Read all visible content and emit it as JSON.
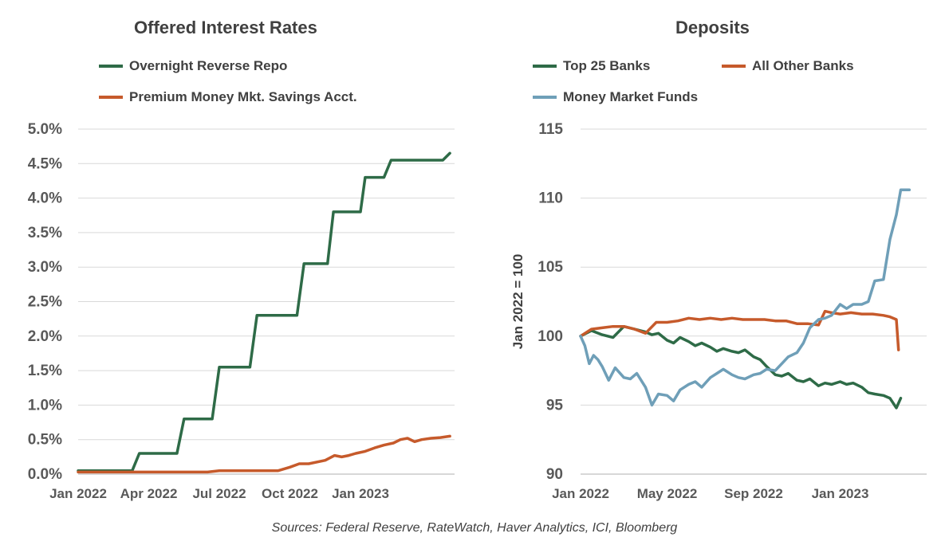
{
  "charts": {
    "rates": {
      "title": "Offered Interest Rates",
      "legend": [
        {
          "label": "Overnight Reverse Repo",
          "color": "#2e6b47"
        },
        {
          "label": "Premium Money Mkt. Savings Acct.",
          "color": "#c65a2b"
        }
      ]
    },
    "deposits": {
      "title": "Deposits",
      "ylabel": "Jan 2022 = 100",
      "legend": [
        {
          "label": "Top 25 Banks",
          "color": "#2e6b47"
        },
        {
          "label": "All Other Banks",
          "color": "#c65a2b"
        },
        {
          "label": "Money Market Funds",
          "color": "#6f9fb8"
        }
      ]
    }
  },
  "source": "Sources: Federal Reserve,  RateWatch, Haver Analytics, ICI, Bloomberg",
  "chart_data": [
    {
      "type": "line",
      "title": "Offered Interest Rates",
      "xlabel": "",
      "ylabel": "",
      "ylim": [
        0,
        5
      ],
      "xlim": [
        0,
        16
      ],
      "x_unit": "months since Jan 2022",
      "y_ticks": [
        "0.0%",
        "0.5%",
        "1.0%",
        "1.5%",
        "2.0%",
        "2.5%",
        "3.0%",
        "3.5%",
        "4.0%",
        "4.5%",
        "5.0%"
      ],
      "y_tick_values": [
        0,
        0.5,
        1,
        1.5,
        2,
        2.5,
        3,
        3.5,
        4,
        4.5,
        5
      ],
      "x_ticks": [
        "Jan 2022",
        "Apr 2022",
        "Jul 2022",
        "Oct 2022",
        "Jan 2023"
      ],
      "x_tick_values": [
        0,
        3,
        6,
        9,
        12
      ],
      "grid": true,
      "series": [
        {
          "name": "Overnight Reverse Repo",
          "color": "#2e6b47",
          "x": [
            0,
            2.3,
            2.6,
            2.8,
            4.2,
            4.5,
            4.7,
            5.7,
            6.0,
            6.2,
            7.3,
            7.6,
            7.8,
            9.3,
            9.6,
            9.8,
            10.6,
            10.85,
            11.05,
            12.0,
            12.2,
            12.4,
            13.0,
            13.3,
            13.5,
            15.0,
            15.15,
            15.25,
            15.5,
            15.8
          ],
          "values": [
            0.05,
            0.05,
            0.3,
            0.3,
            0.3,
            0.8,
            0.8,
            0.8,
            1.55,
            1.55,
            1.55,
            2.3,
            2.3,
            2.3,
            3.05,
            3.05,
            3.05,
            3.8,
            3.8,
            3.8,
            4.3,
            4.3,
            4.3,
            4.55,
            4.55,
            4.55,
            4.55,
            4.55,
            4.55,
            4.65
          ]
        },
        {
          "name": "Premium Money Mkt. Savings Acct.",
          "color": "#c65a2b",
          "x": [
            0,
            3,
            5.5,
            6.0,
            8.5,
            9.0,
            9.4,
            9.8,
            10.5,
            10.9,
            11.2,
            11.5,
            11.8,
            12.2,
            12.6,
            13.0,
            13.4,
            13.7,
            14.0,
            14.3,
            14.6,
            15.0,
            15.4,
            15.8
          ],
          "values": [
            0.03,
            0.03,
            0.03,
            0.05,
            0.05,
            0.1,
            0.15,
            0.15,
            0.2,
            0.27,
            0.25,
            0.27,
            0.3,
            0.33,
            0.38,
            0.42,
            0.45,
            0.5,
            0.52,
            0.47,
            0.5,
            0.52,
            0.53,
            0.55
          ]
        }
      ]
    },
    {
      "type": "line",
      "title": "Deposits",
      "xlabel": "",
      "ylabel": "Jan 2022 = 100",
      "ylim": [
        90,
        115
      ],
      "xlim": [
        0,
        16
      ],
      "x_unit": "months since Jan 2022",
      "y_ticks": [
        "90",
        "95",
        "100",
        "105",
        "110",
        "115"
      ],
      "y_tick_values": [
        90,
        95,
        100,
        105,
        110,
        115
      ],
      "x_ticks": [
        "Jan 2022",
        "May 2022",
        "Sep 2022",
        "Jan 2023"
      ],
      "x_tick_values": [
        0,
        4,
        8,
        12
      ],
      "grid": true,
      "series": [
        {
          "name": "Top 25 Banks",
          "color": "#2e6b47",
          "x": [
            0,
            0.5,
            1,
            1.5,
            2,
            2.5,
            3,
            3.3,
            3.6,
            4,
            4.3,
            4.6,
            5,
            5.3,
            5.6,
            6,
            6.3,
            6.6,
            7,
            7.3,
            7.6,
            8,
            8.3,
            8.6,
            9,
            9.3,
            9.6,
            10,
            10.3,
            10.6,
            11,
            11.3,
            11.6,
            12,
            12.3,
            12.6,
            13,
            13.3,
            13.6,
            14,
            14.3,
            14.6,
            14.8
          ],
          "values": [
            100,
            100.4,
            100.1,
            99.9,
            100.7,
            100.5,
            100.3,
            100.1,
            100.2,
            99.7,
            99.5,
            99.9,
            99.6,
            99.3,
            99.5,
            99.2,
            98.9,
            99.1,
            98.9,
            98.8,
            99.0,
            98.5,
            98.3,
            97.8,
            97.2,
            97.1,
            97.3,
            96.8,
            96.7,
            96.9,
            96.4,
            96.6,
            96.5,
            96.7,
            96.5,
            96.6,
            96.3,
            95.9,
            95.8,
            95.7,
            95.5,
            94.8,
            95.5
          ]
        },
        {
          "name": "All Other Banks",
          "color": "#c65a2b",
          "x": [
            0,
            0.5,
            1,
            1.5,
            2,
            2.5,
            3,
            3.5,
            4,
            4.5,
            5,
            5.5,
            6,
            6.5,
            7,
            7.5,
            8,
            8.5,
            9,
            9.5,
            10,
            10.5,
            11,
            11.3,
            11.6,
            12,
            12.5,
            13,
            13.5,
            14,
            14.3,
            14.6,
            14.7
          ],
          "values": [
            100,
            100.5,
            100.6,
            100.7,
            100.7,
            100.5,
            100.2,
            101.0,
            101.0,
            101.1,
            101.3,
            101.2,
            101.3,
            101.2,
            101.3,
            101.2,
            101.2,
            101.2,
            101.1,
            101.1,
            100.9,
            100.9,
            100.8,
            101.8,
            101.7,
            101.6,
            101.7,
            101.6,
            101.6,
            101.5,
            101.4,
            101.2,
            99.0
          ]
        },
        {
          "name": "Money Market Funds",
          "color": "#6f9fb8",
          "x": [
            0,
            0.2,
            0.4,
            0.6,
            0.8,
            1,
            1.3,
            1.6,
            2,
            2.3,
            2.6,
            3,
            3.3,
            3.6,
            4,
            4.3,
            4.6,
            5,
            5.3,
            5.6,
            6,
            6.3,
            6.6,
            7,
            7.3,
            7.6,
            8,
            8.3,
            8.6,
            9,
            9.3,
            9.6,
            10,
            10.3,
            10.6,
            11,
            11.3,
            11.6,
            12,
            12.3,
            12.6,
            13,
            13.3,
            13.6,
            14,
            14.3,
            14.6,
            14.8,
            15.2
          ],
          "values": [
            100,
            99.3,
            98.0,
            98.6,
            98.3,
            97.8,
            96.8,
            97.7,
            97.0,
            96.9,
            97.3,
            96.3,
            95.0,
            95.8,
            95.7,
            95.3,
            96.1,
            96.5,
            96.7,
            96.3,
            97.0,
            97.3,
            97.6,
            97.2,
            97.0,
            96.9,
            97.2,
            97.3,
            97.6,
            97.5,
            98.0,
            98.5,
            98.8,
            99.5,
            100.6,
            101.2,
            101.3,
            101.5,
            102.3,
            102.0,
            102.3,
            102.3,
            102.5,
            104.0,
            104.1,
            107.0,
            108.8,
            110.6,
            110.6
          ]
        }
      ]
    }
  ]
}
